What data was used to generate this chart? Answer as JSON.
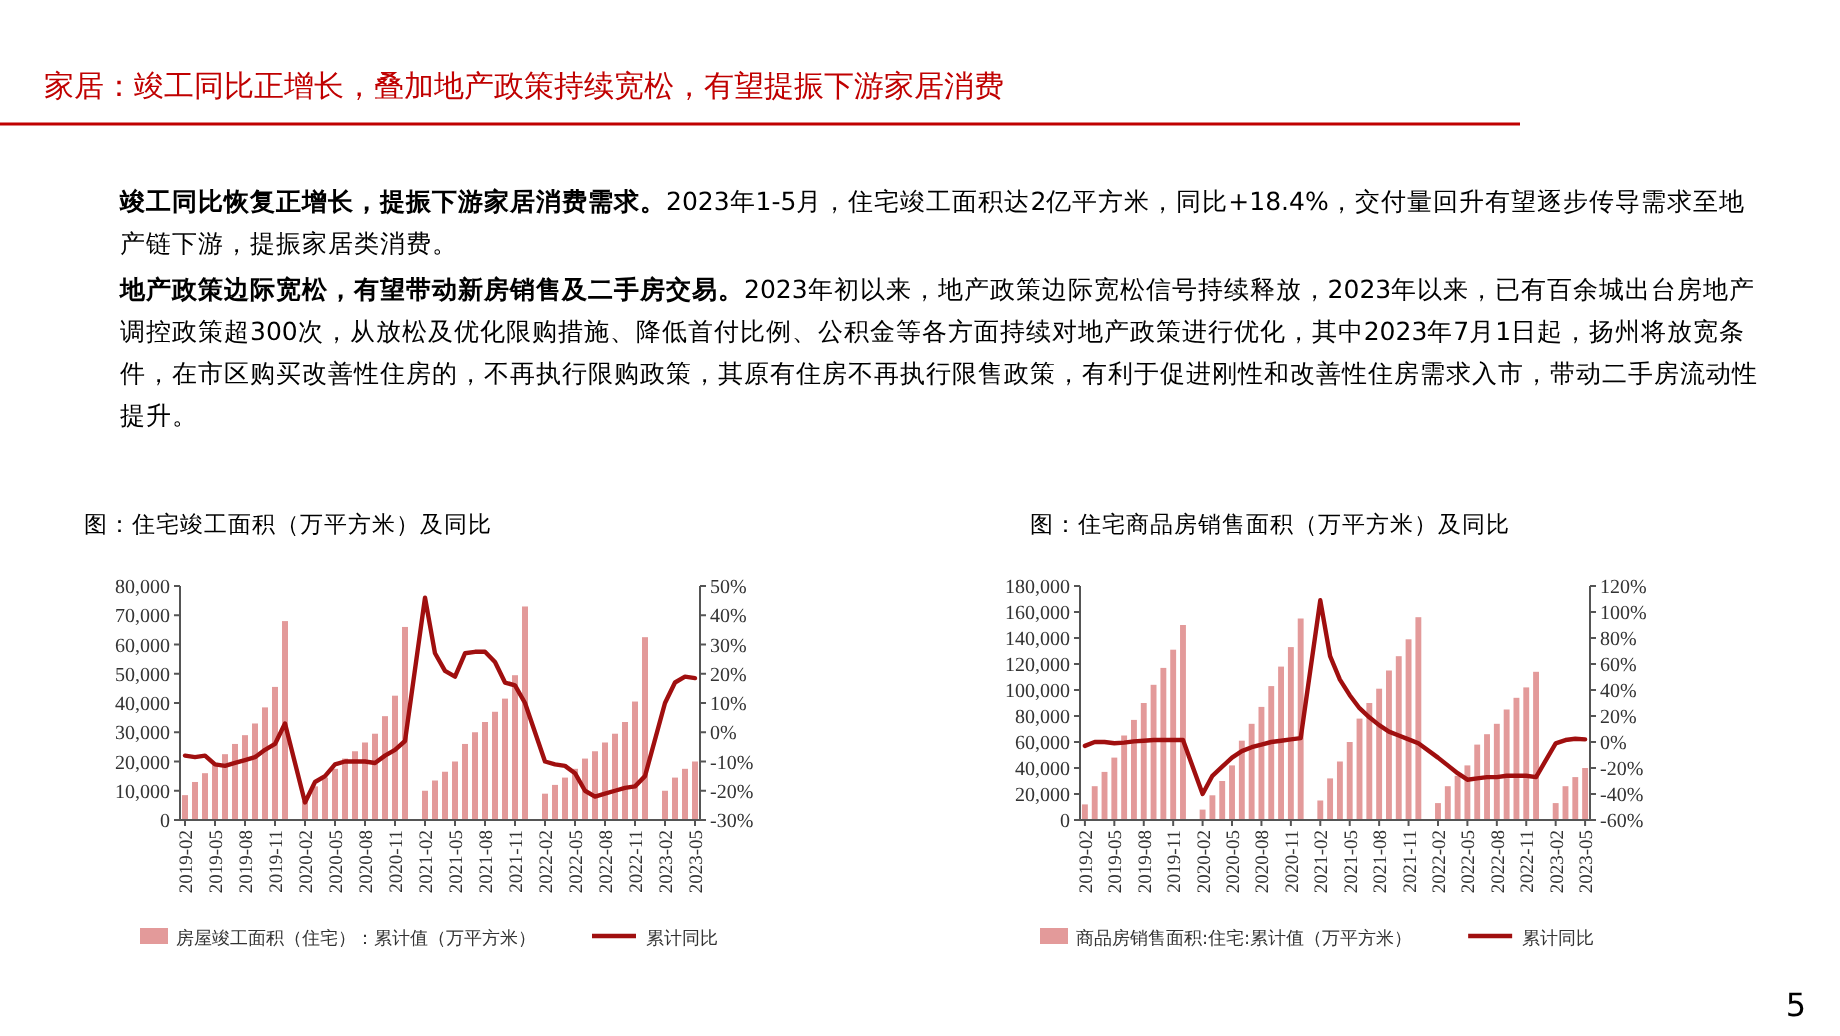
{
  "chart_data": [
    {
      "type": "other",
      "title": "家居：竣工同比正增长，叠加地产政策持续宽松，有望提振下游家居消费",
      "annotations": [
        "竣工同比恢复正增长，提振下游家居消费需求。2023年1-5月，住宅竣工面积达2亿平方米，同比+18.4%，交付量回升有望逐步传导需求至地产链下游，提振家居类消费。",
        "地产政策边际宽松，有望带动新房销售及二手房交易。2023年初以来，地产政策边际宽松信号持续释放，2023年以来，已有百余城出台房地产调控政策超300次，从放松及优化限购措施、降低首付比例、公积金等各方面持续对地产政策进行优化，其中2023年7月1日起，扬州将放宽条件，在市区购买改善性住房的，不再执行限购政策，其原有住房不再执行限售政策，有利于促进刚性和改善性住房需求入市，带动二手房流动性提升。",
        "5"
      ]
    },
    {
      "type": "bar",
      "title": "图：住宅竣工面积（万平方米）及同比",
      "legend": "bottom",
      "categories": [
        "2019-02",
        null,
        null,
        "2019-05",
        null,
        null,
        "2019-08",
        null,
        null,
        "2019-11",
        null,
        null,
        "2020-02",
        null,
        null,
        "2020-05",
        null,
        null,
        "2020-08",
        null,
        null,
        "2020-11",
        null,
        null,
        "2021-02",
        null,
        null,
        "2021-05",
        null,
        null,
        "2021-08",
        null,
        null,
        "2021-11",
        null,
        null,
        "2022-02",
        null,
        null,
        "2022-05",
        null,
        null,
        "2022-08",
        null,
        null,
        "2022-11",
        null,
        null,
        "2023-02",
        null,
        null,
        "2023-05"
      ],
      "series": [
        {
          "name": "房屋竣工面积（住宅）：累计值（万平方米）",
          "color": "#e39a9a",
          "values": [
            8500,
            13000,
            16000,
            19000,
            22500,
            26000,
            29000,
            33000,
            38500,
            45500,
            68000,
            null,
            6500,
            11500,
            14500,
            17500,
            21000,
            23500,
            26500,
            29500,
            35500,
            42500,
            66000,
            null,
            10000,
            13500,
            16500,
            20000,
            26000,
            30000,
            33500,
            37000,
            41500,
            49500,
            73000,
            null,
            9000,
            12000,
            14500,
            17500,
            21000,
            23500,
            26500,
            29500,
            33500,
            40500,
            62500,
            null,
            10000,
            14500,
            17500,
            20000
          ]
        },
        {
          "name": "累计同比",
          "type": "line",
          "axis": "y2",
          "color": "#a00f0f",
          "values": [
            -8,
            -8.5,
            -8,
            -11,
            -11.5,
            -10.5,
            -9.5,
            -8.5,
            -6,
            -4,
            3,
            null,
            -24,
            -17,
            -15,
            -11,
            -10,
            -10,
            -10,
            -10.5,
            -8,
            -6,
            -3,
            null,
            46,
            27,
            21,
            19,
            27,
            27.5,
            27.5,
            24,
            17,
            16,
            10,
            null,
            -10,
            -11,
            -11.5,
            -14,
            -20,
            -22,
            -21,
            -20,
            -19,
            -18.5,
            -15,
            null,
            10,
            17,
            19,
            18.5
          ]
        }
      ],
      "ylim": [
        0,
        80000
      ],
      "yticks": [
        0,
        {
          "value": 10000,
          "label": "10,000"
        },
        {
          "value": 20000,
          "label": "20,000"
        },
        {
          "value": 30000,
          "label": "30,000"
        },
        {
          "value": 40000,
          "label": "40,000"
        },
        {
          "value": 50000,
          "label": "50,000"
        },
        {
          "value": 60000,
          "label": "60,000"
        },
        {
          "value": 70000,
          "label": "70,000"
        },
        {
          "value": 80000,
          "label": "80,000"
        }
      ],
      "y2lim": [
        -30,
        50
      ],
      "y2ticks": [
        {
          "value": -30,
          "label": "-30%"
        },
        {
          "value": -20,
          "label": "-20%"
        },
        {
          "value": -10,
          "label": "-10%"
        },
        {
          "value": 0,
          "label": "0%"
        },
        {
          "value": 10,
          "label": "10%"
        },
        {
          "value": 20,
          "label": "20%"
        },
        {
          "value": 30,
          "label": "30%"
        },
        {
          "value": 40,
          "label": "40%"
        },
        {
          "value": 50,
          "label": "50%"
        }
      ]
    },
    {
      "type": "bar",
      "title": "图：住宅商品房销售面积（万平方米）及同比",
      "legend": "bottom",
      "categories": [
        "2019-02",
        null,
        null,
        "2019-05",
        null,
        null,
        "2019-08",
        null,
        null,
        "2019-11",
        null,
        null,
        "2020-02",
        null,
        null,
        "2020-05",
        null,
        null,
        "2020-08",
        null,
        null,
        "2020-11",
        null,
        null,
        "2021-02",
        null,
        null,
        "2021-05",
        null,
        null,
        "2021-08",
        null,
        null,
        "2021-11",
        null,
        null,
        "2022-02",
        null,
        null,
        "2022-05",
        null,
        null,
        "2022-08",
        null,
        null,
        "2022-11",
        null,
        null,
        "2023-02",
        null,
        null,
        "2023-05"
      ],
      "series": [
        {
          "name": "商品房销售面积:住宅:累计值（万平方米）",
          "color": "#e39a9a",
          "values": [
            12000,
            26000,
            37000,
            48000,
            65000,
            77000,
            90000,
            104000,
            117000,
            131000,
            150000,
            null,
            8000,
            19000,
            30000,
            42000,
            61000,
            74000,
            87000,
            103000,
            118000,
            133000,
            155000,
            null,
            15000,
            32000,
            45000,
            60000,
            78000,
            90000,
            101000,
            115000,
            126000,
            139000,
            156000,
            null,
            13000,
            26000,
            34000,
            42000,
            58000,
            66000,
            74000,
            85000,
            94000,
            102000,
            114000,
            null,
            13000,
            26000,
            33000,
            40000
          ]
        },
        {
          "name": "累计同比",
          "type": "line",
          "axis": "y2",
          "color": "#a00f0f",
          "values": [
            -3,
            0,
            0,
            -1,
            -0.5,
            0.5,
            1,
            1.5,
            1.5,
            1.5,
            1.5,
            null,
            -40,
            -26,
            -19,
            -12,
            -7,
            -4,
            -2,
            0,
            1,
            2,
            3,
            null,
            109,
            66,
            48,
            36,
            26,
            19,
            13,
            8,
            5,
            2,
            -1,
            null,
            -12,
            -18,
            -24,
            -29,
            -28,
            -27,
            -27,
            -26,
            -26,
            -26,
            -27,
            null,
            -1,
            1.5,
            2.5,
            2
          ]
        }
      ],
      "ylim": [
        0,
        180000
      ],
      "yticks": [
        0,
        {
          "value": 20000,
          "label": "20,000"
        },
        {
          "value": 40000,
          "label": "40,000"
        },
        {
          "value": 60000,
          "label": "60,000"
        },
        {
          "value": 80000,
          "label": "80,000"
        },
        {
          "value": 100000,
          "label": "100,000"
        },
        {
          "value": 120000,
          "label": "120,000"
        },
        {
          "value": 140000,
          "label": "140,000"
        },
        {
          "value": 160000,
          "label": "160,000"
        },
        {
          "value": 180000,
          "label": "180,000"
        }
      ],
      "y2lim": [
        -60,
        120
      ],
      "y2ticks": [
        {
          "value": -60,
          "label": "-60%"
        },
        {
          "value": -40,
          "label": "-40%"
        },
        {
          "value": -20,
          "label": "-20%"
        },
        {
          "value": 0,
          "label": "0%"
        },
        {
          "value": 20,
          "label": "20%"
        },
        {
          "value": 40,
          "label": "40%"
        },
        {
          "value": 60,
          "label": "60%"
        },
        {
          "value": 80,
          "label": "80%"
        },
        {
          "value": 100,
          "label": "100%"
        },
        {
          "value": 120,
          "label": "120%"
        }
      ]
    }
  ]
}
